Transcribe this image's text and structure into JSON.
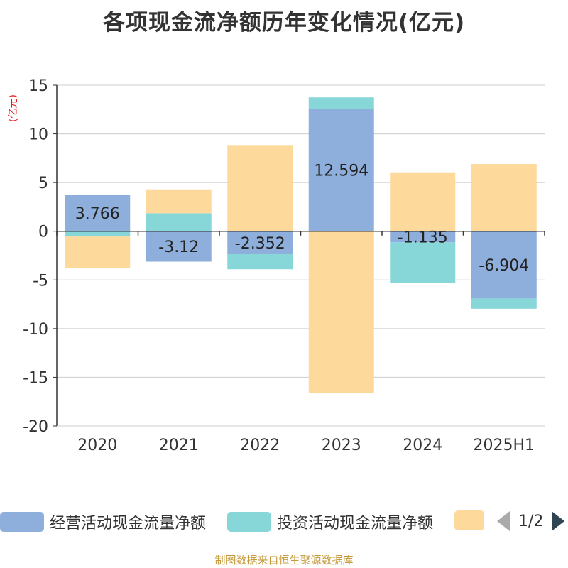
{
  "chart_data": {
    "type": "bar",
    "stacked": true,
    "title": "各项现金流净额历年变化情况(亿元)",
    "unit_label": "(亿元)",
    "categories": [
      "2020",
      "2021",
      "2022",
      "2023",
      "2024",
      "2025H1"
    ],
    "ylim": [
      -20,
      15
    ],
    "yticks": [
      15,
      10,
      5,
      0,
      -5,
      -10,
      -15,
      -20
    ],
    "grid": true,
    "series": [
      {
        "name": "经营活动现金流量净额",
        "color": "#8eaedb",
        "values": [
          3.766,
          -3.12,
          -2.352,
          12.594,
          -1.135,
          -6.904
        ],
        "show_labels": true
      },
      {
        "name": "投资活动现金流量净额",
        "color": "#87d6d8",
        "values": [
          -0.55,
          1.85,
          -1.55,
          1.15,
          -4.2,
          -1.05
        ]
      },
      {
        "name": "",
        "color": "#fdd99c",
        "values": [
          -3.2,
          2.45,
          8.85,
          -16.65,
          6.05,
          6.9
        ]
      }
    ],
    "legend": {
      "position": "bottom",
      "page": "1/2"
    }
  },
  "source": "制图数据来自恒生聚源数据库"
}
